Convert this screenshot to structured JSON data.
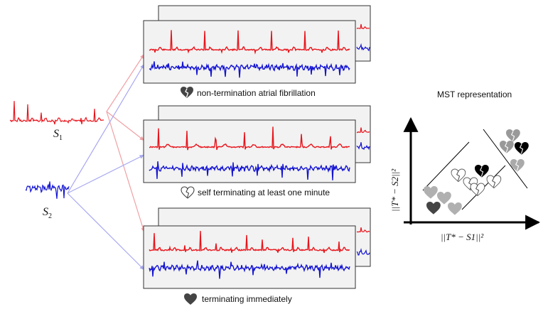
{
  "signals": {
    "s1": {
      "name": "S",
      "sub": "1",
      "color": "#e8141b"
    },
    "s2": {
      "name": "S",
      "sub": "2",
      "color": "#1414d2"
    }
  },
  "panels": [
    {
      "label": "non-termination atrial fibrillation",
      "icon": "broken-heart-dark-icon"
    },
    {
      "label": "self terminating at least one minute",
      "icon": "broken-heart-outline-icon"
    },
    {
      "label": "terminating immediately",
      "icon": "heart-dark-icon"
    }
  ],
  "mst": {
    "title": "MST representation",
    "x_axis_label": "||T* − S1||²",
    "y_axis_label": "||T* − S2||²"
  },
  "colors": {
    "red_trace": "#e8141b",
    "blue_trace": "#1414d2",
    "arrow_red": "#f0a0a4",
    "arrow_blue": "#a8a8f0",
    "panel_bg": "#f2f2f2",
    "heart_dark": "#444444",
    "heart_light": "#b0b0b0",
    "heart_outline": "#ffffff"
  }
}
